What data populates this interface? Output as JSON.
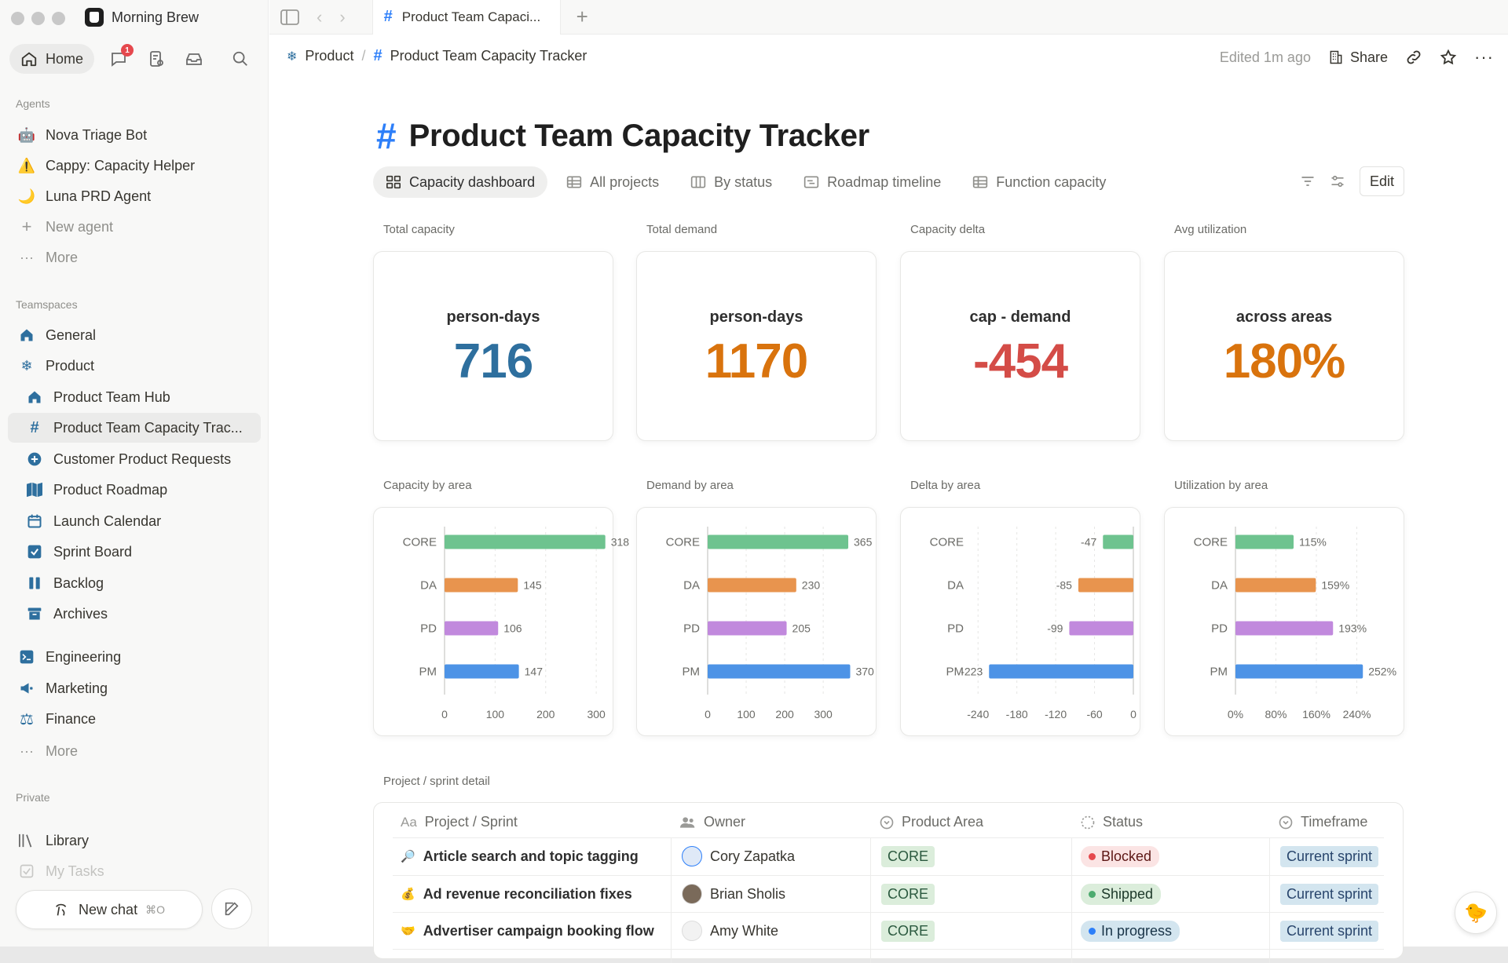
{
  "app": {
    "workspace": "Morning Brew",
    "home": "Home",
    "notification_count": "1"
  },
  "sidebar": {
    "agents_label": "Agents",
    "agents": [
      {
        "label": "Nova Triage Bot",
        "icon": "robot-icon"
      },
      {
        "label": "Cappy: Capacity Helper",
        "icon": "warning-face-icon"
      },
      {
        "label": "Luna PRD Agent",
        "icon": "moon-icon"
      },
      {
        "label": "New agent",
        "icon": "plus-icon"
      },
      {
        "label": "More",
        "icon": "ellipsis-icon"
      }
    ],
    "teamspaces_label": "Teamspaces",
    "teamspaces": [
      {
        "label": "General",
        "icon": "home-icon"
      },
      {
        "label": "Product",
        "icon": "snowflake-icon"
      }
    ],
    "product_pages": [
      {
        "label": "Product Team Hub",
        "icon": "home-icon"
      },
      {
        "label": "Product Team Capacity Trac...",
        "icon": "hash-icon"
      },
      {
        "label": "Customer Product Requests",
        "icon": "plus-circle-icon"
      },
      {
        "label": "Product Roadmap",
        "icon": "map-icon"
      },
      {
        "label": "Launch Calendar",
        "icon": "calendar-icon"
      },
      {
        "label": "Sprint Board",
        "icon": "checkbox-icon"
      },
      {
        "label": "Backlog",
        "icon": "columns-icon"
      },
      {
        "label": "Archives",
        "icon": "archive-icon"
      }
    ],
    "other_teamspaces": [
      {
        "label": "Engineering",
        "icon": "terminal-icon"
      },
      {
        "label": "Marketing",
        "icon": "megaphone-icon"
      },
      {
        "label": "Finance",
        "icon": "scales-icon"
      },
      {
        "label": "More",
        "icon": "ellipsis-icon"
      }
    ],
    "private_label": "Private",
    "private": [
      {
        "label": "Library",
        "icon": "library-icon"
      },
      {
        "label": "My Tasks",
        "icon": "checkbox-icon"
      }
    ],
    "new_chat": "New chat",
    "new_chat_kbd": "⌘O"
  },
  "tabbar": {
    "tab_title": "Product Team Capaci..."
  },
  "breadcrumb": {
    "parent": "Product",
    "current": "Product Team Capacity Tracker"
  },
  "topbar": {
    "edited": "Edited 1m ago",
    "share": "Share"
  },
  "page": {
    "title": "Product Team Capacity Tracker"
  },
  "views": [
    {
      "label": "Capacity dashboard",
      "icon": "dashboard-icon",
      "active": true
    },
    {
      "label": "All projects",
      "icon": "table-icon"
    },
    {
      "label": "By status",
      "icon": "board-icon"
    },
    {
      "label": "Roadmap timeline",
      "icon": "timeline-icon"
    },
    {
      "label": "Function capacity",
      "icon": "table-icon"
    }
  ],
  "edit_label": "Edit",
  "stats": [
    {
      "label": "Total capacity",
      "sub": "person-days",
      "value": "716",
      "color": "#2e6f9e"
    },
    {
      "label": "Total demand",
      "sub": "person-days",
      "value": "1170",
      "color": "#d9730d"
    },
    {
      "label": "Capacity delta",
      "sub": "cap - demand",
      "value": "-454",
      "color": "#d44c47"
    },
    {
      "label": "Avg utilization",
      "sub": "across areas",
      "value": "180%",
      "color": "#d9730d"
    }
  ],
  "chart_data": [
    {
      "type": "bar",
      "title": "Capacity by area",
      "categories": [
        "CORE",
        "DA",
        "PD",
        "PM"
      ],
      "values": [
        318,
        145,
        106,
        147
      ],
      "value_labels": [
        "318",
        "145",
        "106",
        "147"
      ],
      "ticks": [
        "0",
        "100",
        "200",
        "300"
      ],
      "xlim": [
        0,
        320
      ]
    },
    {
      "type": "bar",
      "title": "Demand by area",
      "categories": [
        "CORE",
        "DA",
        "PD",
        "PM"
      ],
      "values": [
        365,
        230,
        205,
        370
      ],
      "value_labels": [
        "365",
        "230",
        "205",
        "370"
      ],
      "ticks": [
        "0",
        "100",
        "200",
        "300"
      ],
      "xlim": [
        0,
        420
      ]
    },
    {
      "type": "bar",
      "title": "Delta by area",
      "categories": [
        "CORE",
        "DA",
        "PD",
        "PM"
      ],
      "values": [
        -47,
        -85,
        -99,
        -223
      ],
      "value_labels": [
        "-47",
        "-85",
        "-99",
        "-223"
      ],
      "ticks": [
        "-240",
        "-180",
        "-120",
        "-60",
        "0"
      ],
      "xlim": [
        -250,
        0
      ]
    },
    {
      "type": "bar",
      "title": "Utilization by area",
      "categories": [
        "CORE",
        "DA",
        "PD",
        "PM"
      ],
      "values": [
        115,
        159,
        193,
        252
      ],
      "value_labels": [
        "115%",
        "159%",
        "193%",
        "252%"
      ],
      "ticks": [
        "0%",
        "80%",
        "160%",
        "240%"
      ],
      "xlim": [
        0,
        320
      ]
    }
  ],
  "bar_colors": [
    "#6ec38f",
    "#e8944e",
    "#c189dd",
    "#4d93e6"
  ],
  "table": {
    "label": "Project / sprint detail",
    "headers": [
      "Project / Sprint",
      "Owner",
      "Product Area",
      "Status",
      "Timeframe"
    ],
    "rows": [
      {
        "emoji": "🔎",
        "name": "Article search and topic tagging",
        "owner": "Cory Zapatka",
        "area": "CORE",
        "status": "Blocked",
        "status_bg": "#fbe4e4",
        "status_dot": "#e5484d",
        "status_color": "#5d1715",
        "timeframe": "Current sprint"
      },
      {
        "emoji": "💰",
        "name": "Ad revenue reconciliation fixes",
        "owner": "Brian Sholis",
        "area": "CORE",
        "status": "Shipped",
        "status_bg": "#dbeddb",
        "status_dot": "#4dab6f",
        "status_color": "#1c3829",
        "timeframe": "Current sprint"
      },
      {
        "emoji": "🤝",
        "name": "Advertiser campaign booking flow",
        "owner": "Amy White",
        "area": "CORE",
        "status": "In progress",
        "status_bg": "#d3e5ef",
        "status_dot": "#2d7ff9",
        "status_color": "#183347",
        "timeframe": "Current sprint"
      }
    ]
  }
}
